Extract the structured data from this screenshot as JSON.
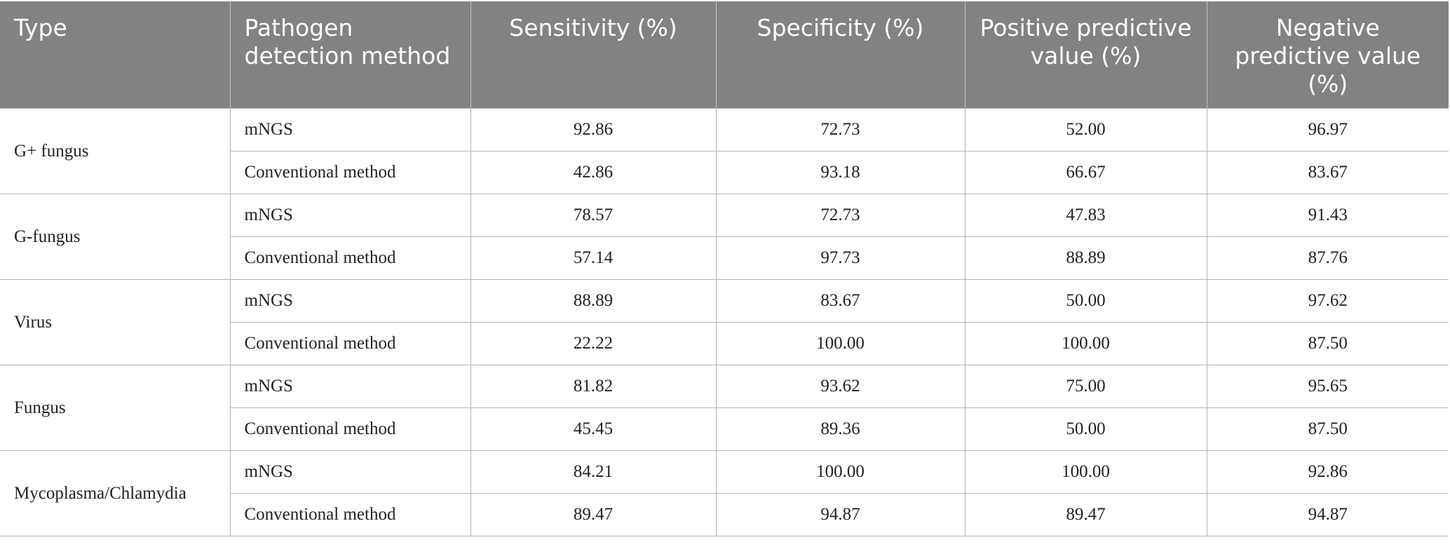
{
  "headers": [
    "Type",
    "Pathogen detection method",
    "Sensitivity (%)",
    "Specificity (%)",
    "Positive predictive value (%)",
    "Negative predictive value (%)"
  ],
  "groups": [
    {
      "type": "G+ fungus",
      "rows": [
        {
          "method": "mNGS",
          "values": [
            "92.86",
            "72.73",
            "52.00",
            "96.97"
          ]
        },
        {
          "method": "Conventional method",
          "values": [
            "42.86",
            "93.18",
            "66.67",
            "83.67"
          ]
        }
      ]
    },
    {
      "type": "G-fungus",
      "rows": [
        {
          "method": "mNGS",
          "values": [
            "78.57",
            "72.73",
            "47.83",
            "91.43"
          ]
        },
        {
          "method": "Conventional method",
          "values": [
            "57.14",
            "97.73",
            "88.89",
            "87.76"
          ]
        }
      ]
    },
    {
      "type": "Virus",
      "rows": [
        {
          "method": "mNGS",
          "values": [
            "88.89",
            "83.67",
            "50.00",
            "97.62"
          ]
        },
        {
          "method": "Conventional method",
          "values": [
            "22.22",
            "100.00",
            "100.00",
            "87.50"
          ]
        }
      ]
    },
    {
      "type": "Fungus",
      "rows": [
        {
          "method": "mNGS",
          "values": [
            "81.82",
            "93.62",
            "75.00",
            "95.65"
          ]
        },
        {
          "method": "Conventional method",
          "values": [
            "45.45",
            "89.36",
            "50.00",
            "87.50"
          ]
        }
      ]
    },
    {
      "type": "Mycoplasma/Chlamydia",
      "rows": [
        {
          "method": "mNGS",
          "values": [
            "84.21",
            "100.00",
            "100.00",
            "92.86"
          ]
        },
        {
          "method": "Conventional method",
          "values": [
            "89.47",
            "94.87",
            "89.47",
            "94.87"
          ]
        }
      ]
    }
  ]
}
